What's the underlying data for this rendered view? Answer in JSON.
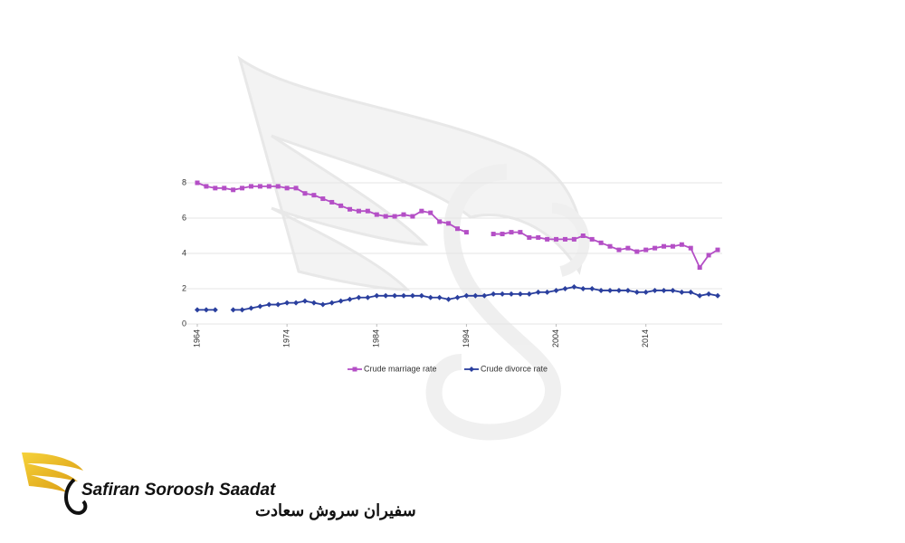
{
  "chart_data": {
    "type": "line",
    "x": [
      1964,
      1965,
      1966,
      1967,
      1968,
      1969,
      1970,
      1971,
      1972,
      1973,
      1974,
      1975,
      1976,
      1977,
      1978,
      1979,
      1980,
      1981,
      1982,
      1983,
      1984,
      1985,
      1986,
      1987,
      1988,
      1989,
      1990,
      1991,
      1992,
      1993,
      1994,
      1995,
      1996,
      1997,
      1998,
      1999,
      2000,
      2001,
      2002,
      2003,
      2004,
      2005,
      2006,
      2007,
      2008,
      2009,
      2010,
      2011,
      2012,
      2013,
      2014,
      2015,
      2016,
      2017,
      2018,
      2019,
      2020,
      2021,
      2022
    ],
    "series": [
      {
        "name": "Crude marriage rate",
        "color": "#b44fc6",
        "marker": "square",
        "values": [
          8.0,
          7.8,
          7.7,
          7.7,
          7.6,
          7.7,
          7.8,
          7.8,
          7.8,
          7.8,
          7.7,
          7.7,
          7.4,
          7.3,
          7.1,
          6.9,
          6.7,
          6.5,
          6.4,
          6.4,
          6.2,
          6.1,
          6.1,
          6.2,
          6.1,
          6.4,
          6.3,
          5.8,
          5.7,
          5.4,
          5.2,
          null,
          null,
          5.1,
          5.1,
          5.2,
          5.2,
          4.9,
          4.9,
          4.8,
          4.8,
          4.8,
          4.8,
          5.0,
          4.8,
          4.6,
          4.4,
          4.2,
          4.3,
          4.1,
          4.2,
          4.3,
          4.4,
          4.4,
          4.5,
          4.3,
          3.2,
          3.9,
          4.2
        ]
      },
      {
        "name": "Crude divorce rate",
        "color": "#2a3f9e",
        "marker": "diamond",
        "values": [
          0.8,
          0.8,
          0.8,
          null,
          0.8,
          0.8,
          0.9,
          1.0,
          1.1,
          1.1,
          1.2,
          1.2,
          1.3,
          1.2,
          1.1,
          1.2,
          1.3,
          1.4,
          1.5,
          1.5,
          1.6,
          1.6,
          1.6,
          1.6,
          1.6,
          1.6,
          1.5,
          1.5,
          1.4,
          1.5,
          1.6,
          1.6,
          1.6,
          1.7,
          1.7,
          1.7,
          1.7,
          1.7,
          1.8,
          1.8,
          1.9,
          2.0,
          2.1,
          2.0,
          2.0,
          1.9,
          1.9,
          1.9,
          1.9,
          1.8,
          1.8,
          1.9,
          1.9,
          1.9,
          1.8,
          1.8,
          1.6,
          1.7,
          1.6
        ]
      }
    ],
    "xlim": [
      1964,
      2022
    ],
    "xticks": [
      1964,
      1974,
      1984,
      1994,
      2004,
      2014
    ],
    "ylim": [
      0,
      8
    ],
    "yticks": [
      0,
      2,
      4,
      6,
      8
    ],
    "grid": true,
    "legend": "bottom"
  },
  "logo": {
    "name": "Safiran Soroosh Saadat",
    "name_fa": "سفیران سروش سعادت"
  }
}
